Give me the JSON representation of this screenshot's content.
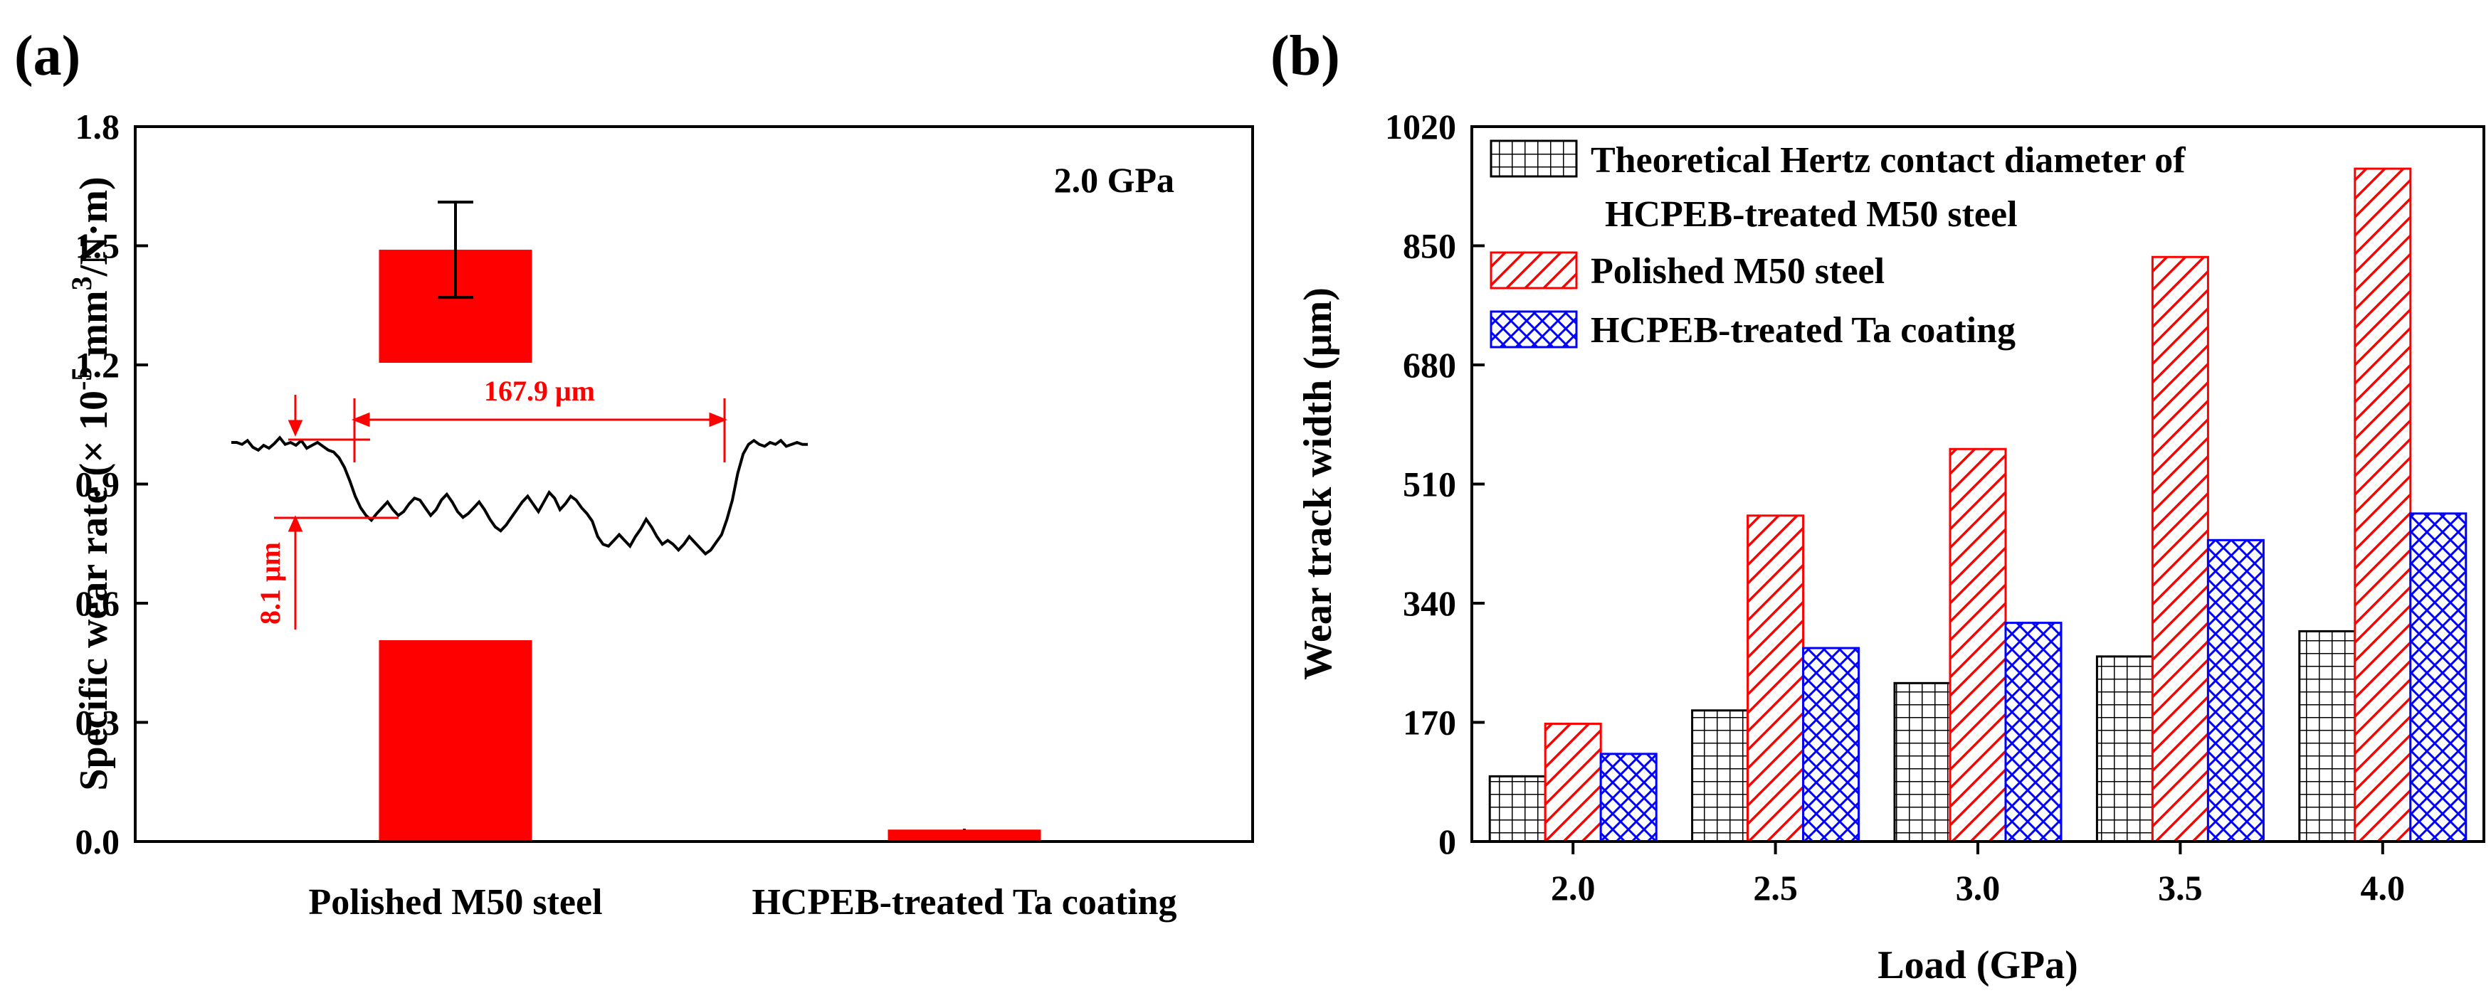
{
  "chart_data": [
    {
      "panel_label": "(a)",
      "type": "bar",
      "ylabel_prefix": "Specific wear rate (× 10",
      "ylabel_exp1": "-5",
      "ylabel_mid": " mm",
      "ylabel_exp2": "3",
      "ylabel_suffix": "/N·m)",
      "ylim": [
        0,
        1.8
      ],
      "yticks": [
        "0.0",
        "0.3",
        "0.6",
        "0.9",
        "1.2",
        "1.5",
        "1.8"
      ],
      "categories": [
        "Polished M50 steel",
        "HCPEB-treated Ta coating"
      ],
      "values": [
        1.49,
        0.03
      ],
      "error": [
        0.12,
        0
      ],
      "annotation": "2.0 GPa",
      "inset": {
        "width_label": "167.9 μm",
        "depth_label": "8.1 μm",
        "profile_depth": [
          0.0,
          0.0,
          0.2,
          -0.2,
          0.5,
          0.8,
          0.3,
          0.6,
          0.1,
          -0.5,
          0.2,
          0.0,
          0.3,
          -0.2,
          0.6,
          0.3,
          0.0,
          0.4,
          0.8,
          1.0,
          1.6,
          2.6,
          4.0,
          5.6,
          6.8,
          7.6,
          8.1,
          7.4,
          6.8,
          6.2,
          7.0,
          7.6,
          7.2,
          6.4,
          5.8,
          6.0,
          6.8,
          7.6,
          7.0,
          6.0,
          5.4,
          6.2,
          7.2,
          7.8,
          7.4,
          6.8,
          6.2,
          7.0,
          8.0,
          8.8,
          9.2,
          8.6,
          7.8,
          7.0,
          6.2,
          5.6,
          6.4,
          7.2,
          6.2,
          5.2,
          5.8,
          7.0,
          6.4,
          5.6,
          6.0,
          6.8,
          7.4,
          8.2,
          9.8,
          10.6,
          10.8,
          10.2,
          9.6,
          10.2,
          10.8,
          9.8,
          9.0,
          8.0,
          8.8,
          9.8,
          10.6,
          10.2,
          10.6,
          11.2,
          10.6,
          9.8,
          10.4,
          11.0,
          11.6,
          11.2,
          10.4,
          9.6,
          8.0,
          6.0,
          3.2,
          1.2,
          0.2,
          -0.2,
          0.2,
          0.4,
          0.0,
          0.2,
          -0.2,
          0.4,
          0.2,
          0.0,
          0.2,
          0.2
        ]
      }
    },
    {
      "panel_label": "(b)",
      "type": "bar",
      "xlabel": "Load (GPa)",
      "ylabel": "Wear track width (μm)",
      "ylim": [
        0,
        1020
      ],
      "yticks": [
        "0",
        "170",
        "340",
        "510",
        "680",
        "850",
        "1020"
      ],
      "categories": [
        "2.0",
        "2.5",
        "3.0",
        "3.5",
        "4.0"
      ],
      "series": [
        {
          "name": "Theoretical Hertz contact diameter of",
          "name2": "HCPEB-treated M50 steel",
          "pattern": "grid",
          "color": "#000000",
          "values": [
            93,
            187,
            226,
            264,
            300
          ]
        },
        {
          "name": "Polished M50 steel",
          "pattern": "hatch",
          "color": "#ff0000",
          "values": [
            168,
            465,
            560,
            834,
            960
          ]
        },
        {
          "name": "HCPEB-treated Ta coating",
          "pattern": "crosshatch",
          "color": "#0000ff",
          "values": [
            125,
            276,
            312,
            430,
            468
          ]
        }
      ]
    }
  ]
}
